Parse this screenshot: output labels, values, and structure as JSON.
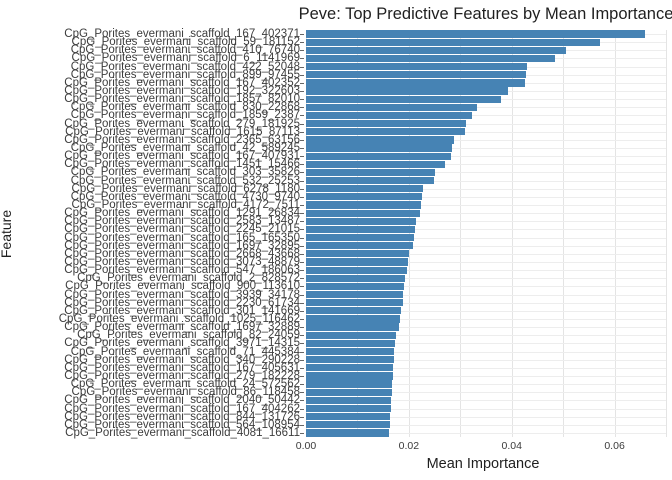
{
  "title": "Peve: Top Predictive Features by Mean Importance",
  "colors": {
    "bar": "#4683b4",
    "grid_v": "#e4e4e4",
    "grid_h": "#ededed",
    "tick_text": "#3b3b3b",
    "label_text": "#3d3d3d"
  },
  "chart_data": {
    "type": "bar",
    "orientation": "horizontal",
    "title": "Peve: Top Predictive Features by Mean Importance",
    "xlabel": "Mean Importance",
    "ylabel": "Feature",
    "xlim": [
      0,
      0.07
    ],
    "grid": true,
    "legend": false,
    "x_ticks": [
      {
        "label": "0.00",
        "value": 0.0
      },
      {
        "label": "0.02",
        "value": 0.02
      },
      {
        "label": "0.04",
        "value": 0.04
      },
      {
        "label": "0.06",
        "value": 0.06
      }
    ],
    "gridline_step": 0.01,
    "categories": [
      "CpG_Porites_evermani_scaffold_167_402371",
      "CpG_Porites_evermani_scaffold_59_181152",
      "CpG_Porites_evermani_scaffold_410_76740",
      "CpG_Porites_evermani_scaffold_6_1141969",
      "CpG_Porites_evermani_scaffold_422_52048",
      "CpG_Porites_evermani_scaffold_899_97455",
      "CpG_Porites_evermani_scaffold_167_402352",
      "CpG_Porites_evermani_scaffold_192_322603",
      "CpG_Porites_evermani_scaffold_1857_82010",
      "CpG_Porites_evermani_scaffold_830_22868",
      "CpG_Porites_evermani_scaffold_1859_2387",
      "CpG_Porites_evermani_scaffold_279_181925",
      "CpG_Porites_evermani_scaffold_1615_87113",
      "CpG_Porites_evermani_scaffold_2365_63156",
      "CpG_Porites_evermani_scaffold_42_589245",
      "CpG_Porites_evermani_scaffold_167_407931",
      "CpG_Porites_evermani_scaffold_1451_15466",
      "CpG_Porites_evermani_scaffold_303_35826",
      "CpG_Porites_evermani_scaffold_532_25253",
      "CpG_Porites_evermani_scaffold_6278_1180",
      "CpG_Porites_evermani_scaffold_4730_9740",
      "CpG_Porites_evermani_scaffold_4172_7511",
      "CpG_Porites_evermani_scaffold_1291_26834",
      "CpG_Porites_evermani_scaffold_2583_13487",
      "CpG_Porites_evermani_scaffold_2245_21015",
      "CpG_Porites_evermani_scaffold_165_165350",
      "CpG_Porites_evermani_scaffold_1697_32895",
      "CpG_Porites_evermani_scaffold_2668_43668",
      "CpG_Porites_evermani_scaffold_3073_48879",
      "CpG_Porites_evermani_scaffold_547_186063",
      "CpG_Porites_evermani_scaffold_2_828572",
      "CpG_Porites_evermani_scaffold_900_113610",
      "CpG_Porites_evermani_scaffold_3939_34178",
      "CpG_Porites_evermani_scaffold_2230_61734",
      "CpG_Porites_evermani_scaffold_301_141669",
      "CpG_Porites_evermani_scaffold_1025_116462",
      "CpG_Porites_evermani_scaffold_1697_32889",
      "CpG_Porites_evermani_scaffold_82_24059",
      "CpG_Porites_evermani_scaffold_3971_14315",
      "CpG_Porites_evermani_scaffold_71_445384",
      "CpG_Porites_evermani_scaffold_340_290228",
      "CpG_Porites_evermani_scaffold_167_405631",
      "CpG_Porites_evermani_scaffold_279_182228",
      "CpG_Porites_evermani_scaffold_24_572562",
      "CpG_Porites_evermani_scaffold_86_118458",
      "CpG_Porites_evermani_scaffold_2040_50442",
      "CpG_Porites_evermani_scaffold_167_404262",
      "CpG_Porites_evermani_scaffold_844_131726",
      "CpG_Porites_evermani_scaffold_564_108954",
      "CpG_Porites_evermani_scaffold_4081_16611"
    ],
    "values": [
      0.066,
      0.0572,
      0.0506,
      0.0484,
      0.0429,
      0.0428,
      0.0425,
      0.0393,
      0.0379,
      0.0333,
      0.0322,
      0.0312,
      0.0309,
      0.0288,
      0.0284,
      0.0281,
      0.027,
      0.0251,
      0.0249,
      0.0227,
      0.0225,
      0.0223,
      0.0222,
      0.0213,
      0.0211,
      0.021,
      0.0209,
      0.0201,
      0.0198,
      0.0196,
      0.0192,
      0.019,
      0.0189,
      0.0188,
      0.0185,
      0.0182,
      0.018,
      0.0175,
      0.0173,
      0.0172,
      0.0171,
      0.017,
      0.0169,
      0.0168,
      0.0167,
      0.0166,
      0.0165,
      0.0164,
      0.0163,
      0.0162
    ]
  }
}
